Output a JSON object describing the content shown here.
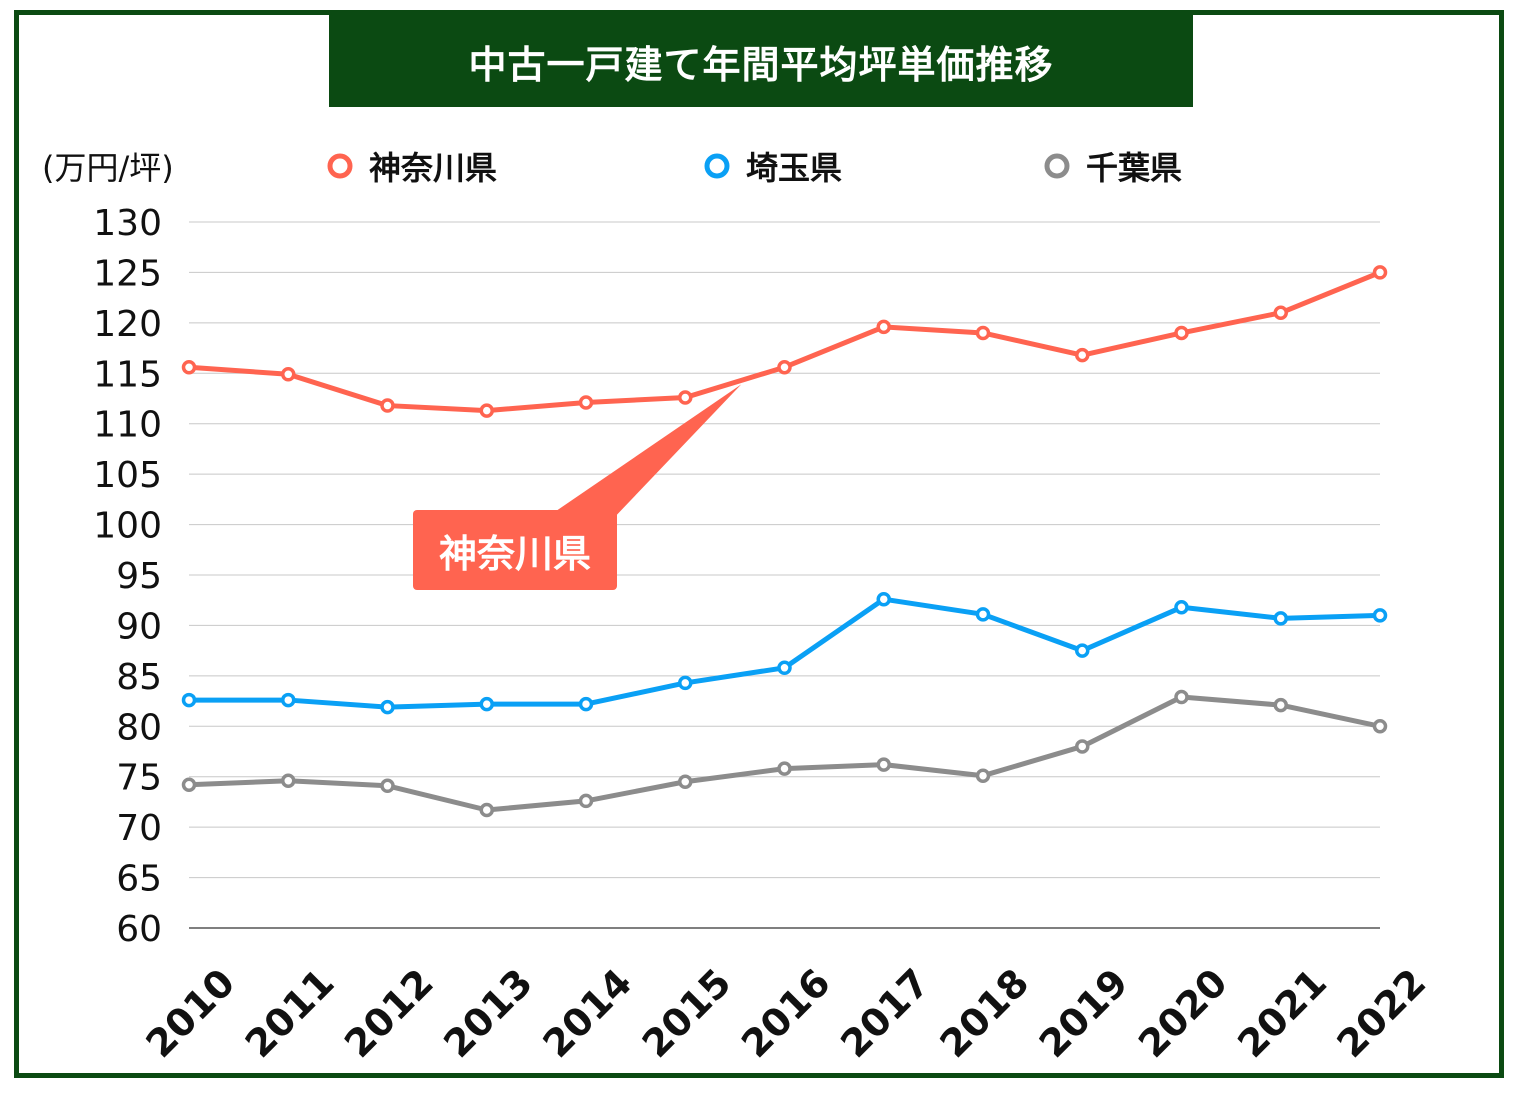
{
  "title": "中古一戸建て年間平均坪単価推移",
  "unit_label": "(万円/坪)",
  "callout_label": "神奈川県",
  "colors": {
    "kanagawa": "#ff6450",
    "saitama": "#0aa0f5",
    "chiba": "#8c8c8c",
    "frame": "#0b4a12"
  },
  "legend": [
    {
      "name": "神奈川県",
      "color": "#ff6450"
    },
    {
      "name": "埼玉県",
      "color": "#0aa0f5"
    },
    {
      "name": "千葉県",
      "color": "#8c8c8c"
    }
  ],
  "chart_data": {
    "type": "line",
    "title": "中古一戸建て年間平均坪単価推移",
    "ylabel": "(万円/坪)",
    "xlabel": "",
    "ylim": [
      60,
      130
    ],
    "yticks": [
      60,
      65,
      70,
      75,
      80,
      85,
      90,
      95,
      100,
      105,
      110,
      115,
      120,
      125,
      130
    ],
    "grid": true,
    "legend_position": "top",
    "x": [
      "2010",
      "2011",
      "2012",
      "2013",
      "2014",
      "2015",
      "2016",
      "2017",
      "2018",
      "2019",
      "2020",
      "2021",
      "2022"
    ],
    "series": [
      {
        "name": "神奈川県",
        "color": "#ff6450",
        "values": [
          115.6,
          114.9,
          111.8,
          111.3,
          112.1,
          112.6,
          115.6,
          119.6,
          119.0,
          116.8,
          119.0,
          121.0,
          125.0
        ]
      },
      {
        "name": "埼玉県",
        "color": "#0aa0f5",
        "values": [
          82.6,
          82.6,
          81.9,
          82.2,
          82.2,
          84.3,
          85.8,
          92.6,
          91.1,
          87.5,
          91.8,
          90.7,
          91.0
        ]
      },
      {
        "name": "千葉県",
        "color": "#8c8c8c",
        "values": [
          74.2,
          74.6,
          74.1,
          71.7,
          72.6,
          74.5,
          75.8,
          76.2,
          75.1,
          78.0,
          82.9,
          82.1,
          80.0
        ]
      }
    ]
  }
}
